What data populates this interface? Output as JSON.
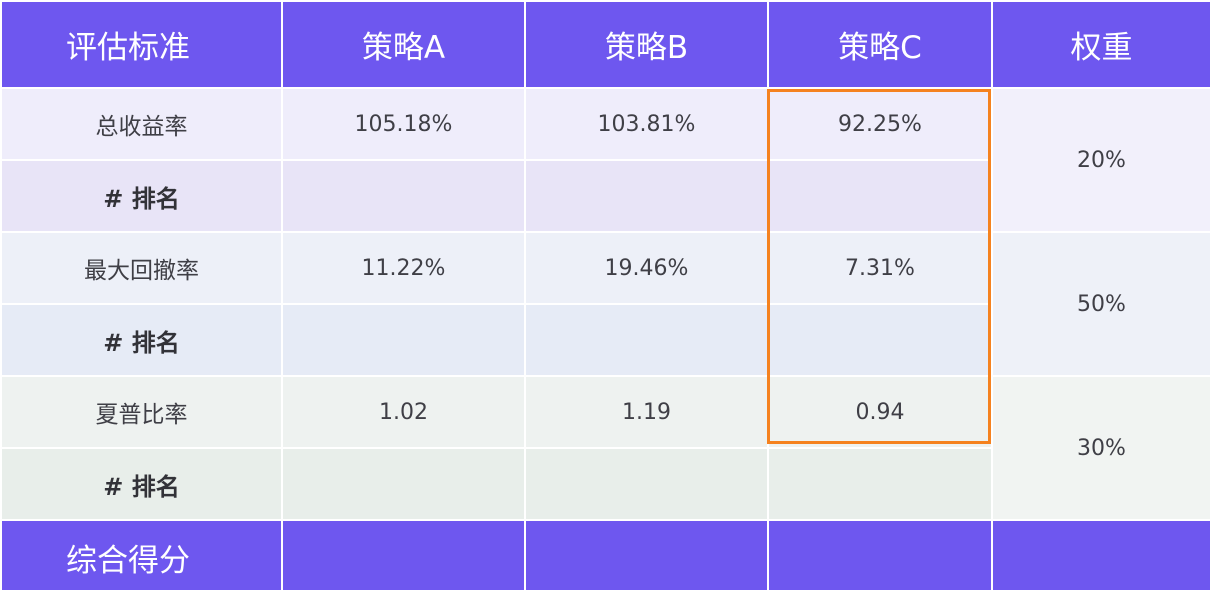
{
  "colors": {
    "header_bg": "#6e57ef",
    "highlight_border": "#f5821f"
  },
  "header": {
    "criteria": "评估标准",
    "strategy_a": "策略A",
    "strategy_b": "策略B",
    "strategy_c": "策略C",
    "weight": "权重"
  },
  "rows": {
    "total_return": {
      "label": "总收益率",
      "a": "105.18%",
      "b": "103.81%",
      "c": "92.25%",
      "rank_label": "# 排名",
      "weight": "20%"
    },
    "max_drawdown": {
      "label": "最大回撤率",
      "a": "11.22%",
      "b": "19.46%",
      "c": "7.31%",
      "rank_label": "# 排名",
      "weight": "50%"
    },
    "sharpe": {
      "label": "夏普比率",
      "a": "1.02",
      "b": "1.19",
      "c": "0.94",
      "rank_label": "# 排名",
      "weight": "30%"
    }
  },
  "footer": {
    "label": "综合得分"
  }
}
